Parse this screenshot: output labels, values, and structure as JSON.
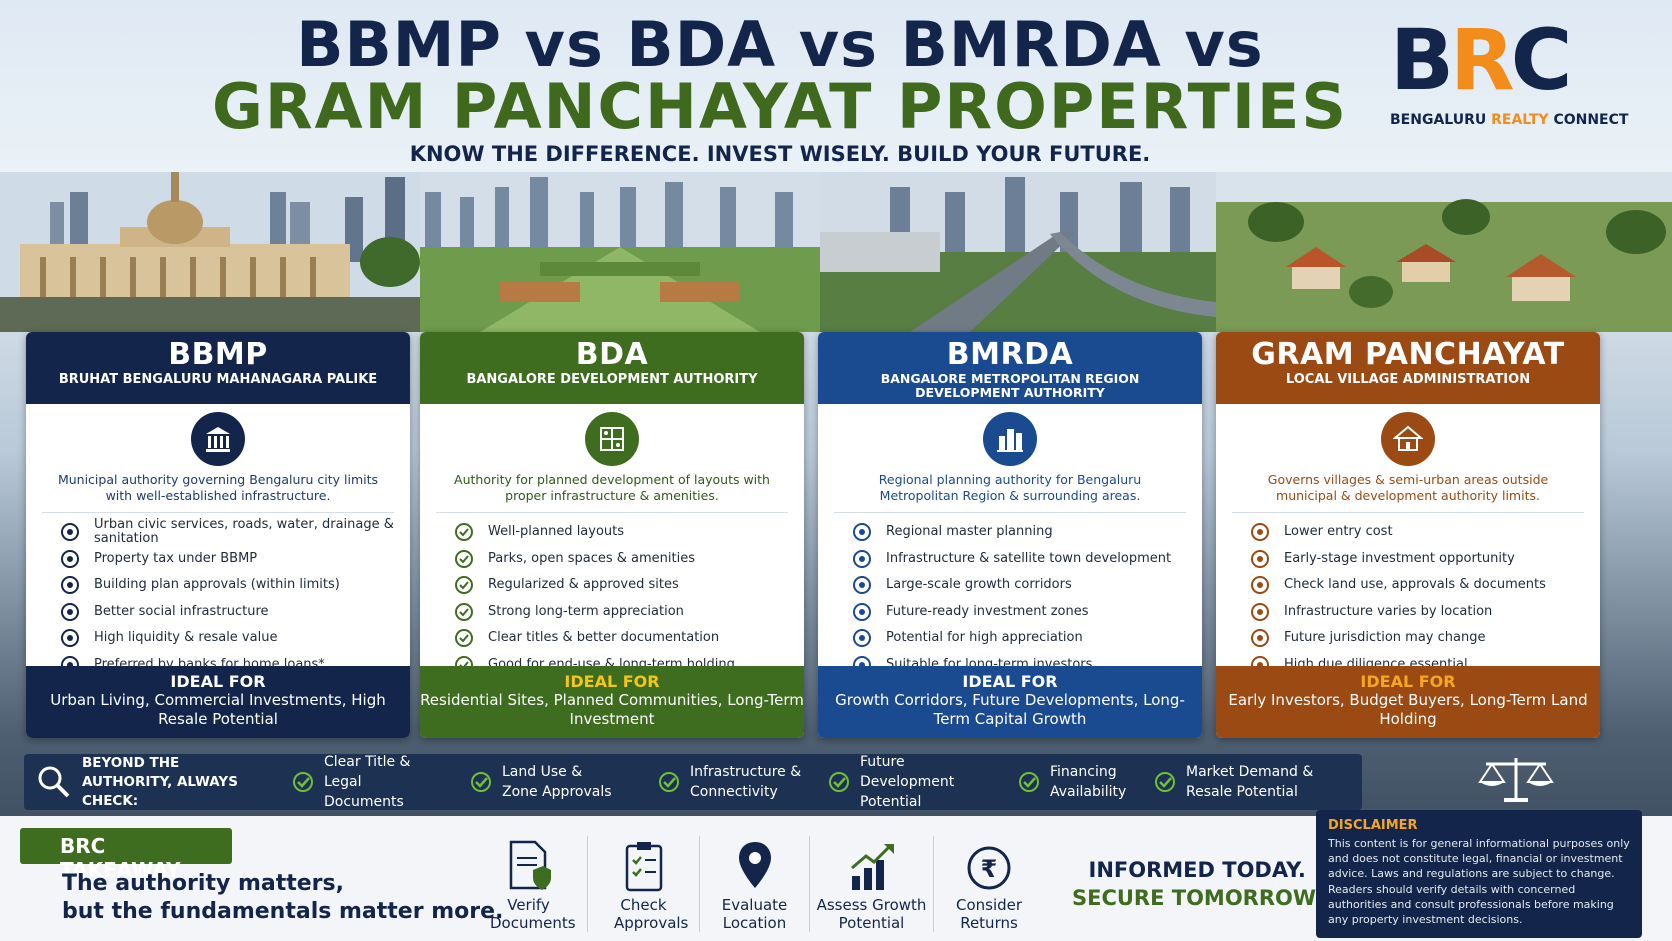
{
  "header": {
    "title_line1": "BBMP vs BDA vs BMRDA vs",
    "title_line2": "GRAM PANCHAYAT PROPERTIES",
    "tagline": "KNOW THE DIFFERENCE. INVEST WISELY. BUILD YOUR FUTURE."
  },
  "logo": {
    "letters_part1": "B",
    "letters_part2": "R",
    "letters_part3": "C",
    "sub_part1": "BENGALURU ",
    "sub_part2": "REALTY",
    "sub_part3": " CONNECT"
  },
  "colors": {
    "navy": "#13254a",
    "green": "#3e6d1f",
    "blue": "#1a4a8f",
    "orange": "#9a4a12",
    "accent_orange": "#f28c1b"
  },
  "cards": [
    {
      "title": "BBMP",
      "subtitle": "BRUHAT BENGALURU MAHANAGARA PALIKE",
      "icon": "government-building-icon",
      "description": "Municipal authority governing Bengaluru city limits with well-established infrastructure.",
      "features": [
        "Urban civic services, roads, water, drainage & sanitation",
        "Property tax under BBMP",
        "Building plan approvals (within limits)",
        "Better social infrastructure",
        "High liquidity & resale value",
        "Preferred by banks for home loans*"
      ],
      "ideal_heading": "IDEAL FOR",
      "ideal_text": "Urban Living, Commercial Investments, High Resale Potential"
    },
    {
      "title": "BDA",
      "subtitle": "BANGALORE DEVELOPMENT AUTHORITY",
      "icon": "layout-plan-icon",
      "description": "Authority for planned development of layouts with proper infrastructure & amenities.",
      "features": [
        "Well-planned layouts",
        "Parks, open spaces & amenities",
        "Regularized & approved sites",
        "Strong long-term appreciation",
        "Clear titles & better documentation",
        "Good for end-use & long-term holding"
      ],
      "ideal_heading": "IDEAL FOR",
      "ideal_text": "Residential Sites, Planned Communities, Long-Term Investment"
    },
    {
      "title": "BMRDA",
      "subtitle": "BANGALORE METROPOLITAN REGION DEVELOPMENT AUTHORITY",
      "icon": "city-skyline-icon",
      "description": "Regional planning authority for Bengaluru Metropolitan Region & surrounding areas.",
      "features": [
        "Regional master planning",
        "Infrastructure & satellite town development",
        "Large-scale growth corridors",
        "Future-ready investment zones",
        "Potential for high appreciation",
        "Suitable for long-term investors"
      ],
      "ideal_heading": "IDEAL FOR",
      "ideal_text": "Growth Corridors, Future Developments, Long-Term Capital Growth"
    },
    {
      "title": "GRAM PANCHAYAT",
      "subtitle": "LOCAL VILLAGE ADMINISTRATION",
      "icon": "village-house-icon",
      "description": "Governs villages & semi-urban areas outside municipal & development authority limits.",
      "features": [
        "Lower entry cost",
        "Early-stage investment opportunity",
        "Check land use, approvals & documents",
        "Infrastructure varies by location",
        "Future jurisdiction may change",
        "High due diligence essential"
      ],
      "ideal_heading": "IDEAL FOR",
      "ideal_text": "Early Investors, Budget Buyers, Long-Term Land Holding"
    }
  ],
  "checkbar": {
    "lead": "BEYOND THE AUTHORITY, ALWAYS CHECK:",
    "items": [
      "Clear Title & Legal Documents",
      "Land Use & Zone Approvals",
      "Infrastructure & Connectivity",
      "Future Development Potential",
      "Financing Availability",
      "Market Demand & Resale Potential"
    ]
  },
  "takeaway": {
    "badge": "BRC TAKEAWAY",
    "line1": "The authority matters,",
    "line2": "but the fundamentals matter more."
  },
  "steps": [
    {
      "label": "Verify Documents",
      "icon": "document-shield-icon"
    },
    {
      "label": "Check Approvals",
      "icon": "checklist-icon"
    },
    {
      "label": "Evaluate Location",
      "icon": "location-pin-icon"
    },
    {
      "label": "Assess Growth Potential",
      "icon": "growth-chart-icon"
    },
    {
      "label": "Consider Returns",
      "icon": "rupee-coin-icon"
    }
  ],
  "motto": {
    "line1": "INFORMED TODAY.",
    "line2": "SECURE TOMORROW."
  },
  "disclaimer": {
    "heading": "DISCLAIMER",
    "text": "This content is for general informational purposes only and does not constitute legal, financial or investment advice. Laws and regulations are subject to change. Readers should verify details with concerned authorities and consult professionals before making any property investment decisions."
  }
}
